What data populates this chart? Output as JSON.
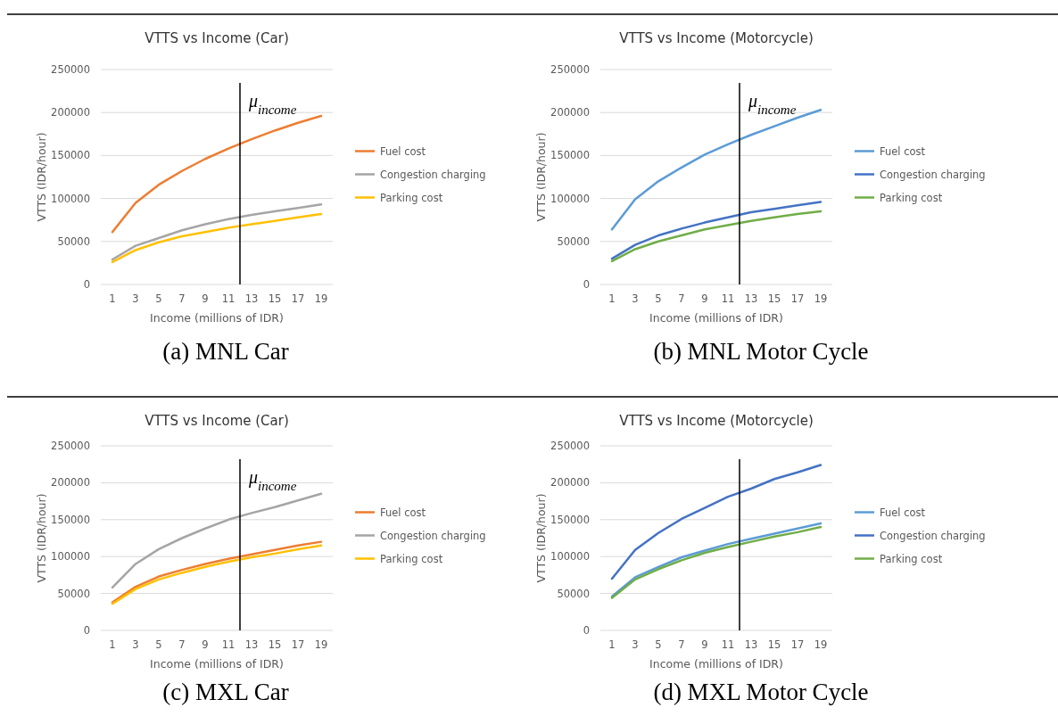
{
  "chart_data": [
    {
      "type": "line",
      "title": "VTTS vs Income (Car)",
      "xlabel": "Income (millions of IDR)",
      "ylabel": "VTTS (IDR/hour)",
      "x": [
        1,
        3,
        5,
        7,
        9,
        11,
        13,
        15,
        17,
        19
      ],
      "xlim": [
        0,
        20
      ],
      "xticks": [
        1,
        3,
        5,
        7,
        9,
        11,
        13,
        15,
        17,
        19
      ],
      "ylim": [
        0,
        250000
      ],
      "yticks": [
        0,
        50000,
        100000,
        150000,
        200000,
        250000
      ],
      "grid": "y",
      "legend": "right",
      "marker": "none",
      "annotations": [
        "(a)  MNL Car"
      ],
      "ref_lines": [
        {
          "axis": "x",
          "value": 12,
          "label": "μ$_{income}$"
        }
      ],
      "series": [
        {
          "name": "Fuel cost",
          "color": "#ed7d31",
          "values": [
            61000,
            95000,
            116000,
            132000,
            146000,
            158000,
            169000,
            179000,
            188000,
            196000
          ]
        },
        {
          "name": "Congestion charging",
          "color": "#a5a5a5",
          "values": [
            29000,
            45000,
            54000,
            63000,
            70000,
            76000,
            81000,
            85000,
            89000,
            93000
          ]
        },
        {
          "name": "Parking cost",
          "color": "#ffc000",
          "values": [
            26000,
            40000,
            49000,
            56000,
            61000,
            66000,
            70000,
            74000,
            78000,
            82000
          ]
        }
      ]
    },
    {
      "type": "line",
      "title": "VTTS vs Income (Motorcycle)",
      "xlabel": "Income (millions of IDR)",
      "ylabel": "VTTS (IDR/hour)",
      "x": [
        1,
        3,
        5,
        7,
        9,
        11,
        13,
        15,
        17,
        19
      ],
      "xlim": [
        0,
        20
      ],
      "xticks": [
        1,
        3,
        5,
        7,
        9,
        11,
        13,
        15,
        17,
        19
      ],
      "ylim": [
        0,
        250000
      ],
      "yticks": [
        0,
        50000,
        100000,
        150000,
        200000,
        250000
      ],
      "grid": "y",
      "legend": "right",
      "marker": "none",
      "annotations": [
        "(b) MNL Motor Cycle"
      ],
      "ref_lines": [
        {
          "axis": "x",
          "value": 12,
          "label": "μ$_{income}$"
        }
      ],
      "series": [
        {
          "name": "Fuel cost",
          "color": "#5b9bd5",
          "values": [
            64000,
            99000,
            120000,
            136000,
            151000,
            163000,
            174000,
            184000,
            194000,
            203000
          ]
        },
        {
          "name": "Congestion charging",
          "color": "#4472c4",
          "values": [
            30000,
            46000,
            57000,
            65000,
            72000,
            78000,
            84000,
            88000,
            92000,
            96000
          ]
        },
        {
          "name": "Parking cost",
          "color": "#70ad47",
          "values": [
            27000,
            41000,
            50000,
            57000,
            64000,
            69000,
            74000,
            78000,
            82000,
            85000
          ]
        }
      ]
    },
    {
      "type": "line",
      "title": "VTTS vs Income (Car)",
      "xlabel": "Income (millions of IDR)",
      "ylabel": "VTTS (IDR/hour)",
      "x": [
        1,
        3,
        5,
        7,
        9,
        11,
        13,
        15,
        17,
        19
      ],
      "xlim": [
        0,
        20
      ],
      "xticks": [
        1,
        3,
        5,
        7,
        9,
        11,
        13,
        15,
        17,
        19
      ],
      "ylim": [
        0,
        250000
      ],
      "yticks": [
        0,
        50000,
        100000,
        150000,
        200000,
        250000
      ],
      "grid": "y",
      "legend": "right",
      "marker": "none",
      "annotations": [
        "(c) MXL Car"
      ],
      "ref_lines": [
        {
          "axis": "x",
          "value": 12,
          "label": "μ$_{income}$"
        }
      ],
      "series": [
        {
          "name": "Fuel cost",
          "color": "#ed7d31",
          "values": [
            38000,
            59000,
            73000,
            82000,
            90000,
            97000,
            103000,
            109000,
            115000,
            120000
          ]
        },
        {
          "name": "Congestion charging",
          "color": "#a5a5a5",
          "values": [
            58000,
            90000,
            110000,
            125000,
            138000,
            150000,
            159000,
            167000,
            176000,
            185000
          ]
        },
        {
          "name": "Parking cost",
          "color": "#ffc000",
          "values": [
            36000,
            56000,
            69000,
            78000,
            86000,
            93000,
            99000,
            104000,
            110000,
            115000
          ]
        }
      ]
    },
    {
      "type": "line",
      "title": "VTTS vs Income (Motorcycle)",
      "xlabel": "Income (millions of IDR)",
      "ylabel": "VTTS (IDR/hour)",
      "x": [
        1,
        3,
        5,
        7,
        9,
        11,
        13,
        15,
        17,
        19
      ],
      "xlim": [
        0,
        20
      ],
      "xticks": [
        1,
        3,
        5,
        7,
        9,
        11,
        13,
        15,
        17,
        19
      ],
      "ylim": [
        0,
        250000
      ],
      "yticks": [
        0,
        50000,
        100000,
        150000,
        200000,
        250000
      ],
      "grid": "y",
      "legend": "right",
      "marker": "none",
      "annotations": [
        "(d) MXL Motor Cycle"
      ],
      "ref_lines": [
        {
          "axis": "x",
          "value": 12
        }
      ],
      "series": [
        {
          "name": "Fuel cost",
          "color": "#5b9bd5",
          "values": [
            46000,
            72000,
            86000,
            99000,
            108000,
            117000,
            124000,
            131000,
            138000,
            145000
          ]
        },
        {
          "name": "Congestion charging",
          "color": "#4472c4",
          "values": [
            70000,
            109000,
            132000,
            151000,
            166000,
            181000,
            192000,
            205000,
            214000,
            224000
          ]
        },
        {
          "name": "Parking cost",
          "color": "#70ad47",
          "values": [
            44000,
            69000,
            83000,
            95000,
            105000,
            113000,
            120000,
            127000,
            133000,
            140000
          ]
        }
      ]
    }
  ]
}
